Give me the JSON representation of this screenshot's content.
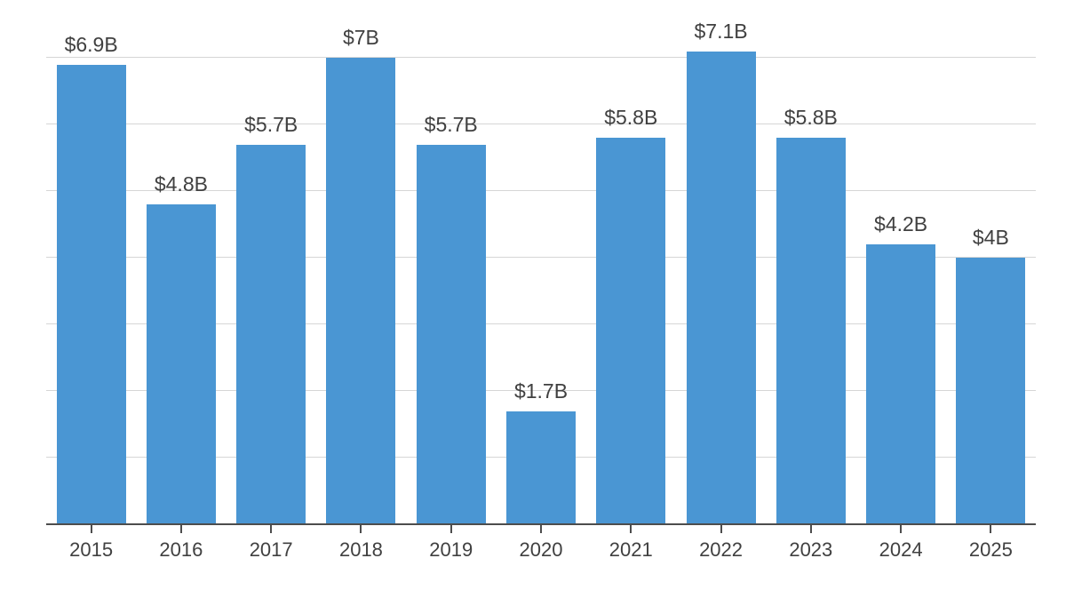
{
  "chart_data": {
    "type": "bar",
    "title": "",
    "xlabel": "",
    "ylabel": "",
    "categories": [
      "2015",
      "2016",
      "2017",
      "2018",
      "2019",
      "2020",
      "2021",
      "2022",
      "2023",
      "2024",
      "2025"
    ],
    "values": [
      6.9,
      4.8,
      5.7,
      7.0,
      5.7,
      1.7,
      5.8,
      7.1,
      5.8,
      4.2,
      4.0
    ],
    "value_labels": [
      "$6.9B",
      "$4.8B",
      "$5.7B",
      "$7B",
      "$5.7B",
      "$1.7B",
      "$5.8B",
      "$7.1B",
      "$5.8B",
      "$4.2B",
      "$4B"
    ],
    "unit": "billions USD",
    "ylim": [
      0,
      7.87
    ],
    "gridline_values": [
      1,
      2,
      3,
      4,
      5,
      6,
      7
    ],
    "grid": "horizontal",
    "legend_position": "none",
    "colors": {
      "bar": "#4a96d3",
      "gridline": "#d6d6d6",
      "axis": "#4d4d4d",
      "label_text": "#404040",
      "background": "#ffffff"
    }
  }
}
